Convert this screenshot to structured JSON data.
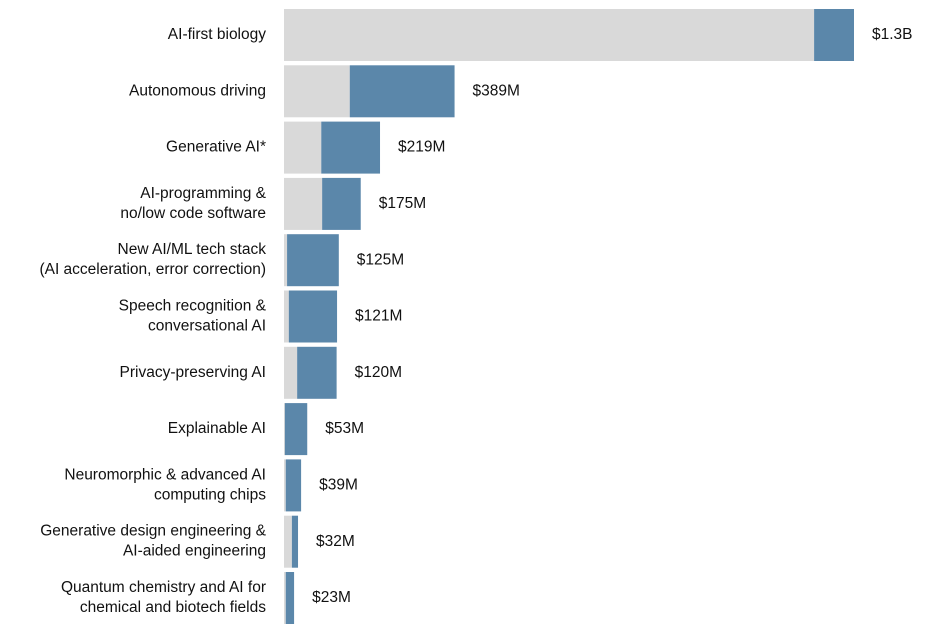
{
  "chart_data": {
    "type": "stacked-bar-horizontal",
    "categories": [
      [
        "AI-first biology"
      ],
      [
        "Autonomous driving"
      ],
      [
        "Generative AI*"
      ],
      [
        "AI-programming &",
        "no/low code software"
      ],
      [
        "New AI/ML tech stack",
        "(AI acceleration, error correction)"
      ],
      [
        "Speech recognition &",
        "conversational AI"
      ],
      [
        "Privacy-preserving AI"
      ],
      [
        "Explainable AI"
      ],
      [
        "Neuromorphic & advanced AI",
        "computing chips"
      ],
      [
        "Generative design engineering &",
        "AI-aided engineering"
      ],
      [
        "Quantum chemistry and AI for",
        "chemical and biotech fields"
      ]
    ],
    "series": [
      {
        "color": "#d9d9d9",
        "values": [
          1209,
          150,
          85,
          87,
          7,
          11,
          30,
          2,
          4,
          18,
          4
        ]
      },
      {
        "color": "#5b87aa",
        "values": [
          91,
          239,
          134,
          88,
          118,
          110,
          90,
          51,
          35,
          14,
          19
        ]
      }
    ],
    "totals": {
      "values": [
        1300,
        389,
        219,
        175,
        125,
        121,
        120,
        53,
        39,
        32,
        23
      ],
      "value_labels": [
        "$1.3B",
        "$389M",
        "$219M",
        "$175M",
        "$125M",
        "$121M",
        "$120M",
        "$53M",
        "$39M",
        "$32M",
        "$23M"
      ]
    },
    "xlim": [
      0,
      1300
    ]
  }
}
